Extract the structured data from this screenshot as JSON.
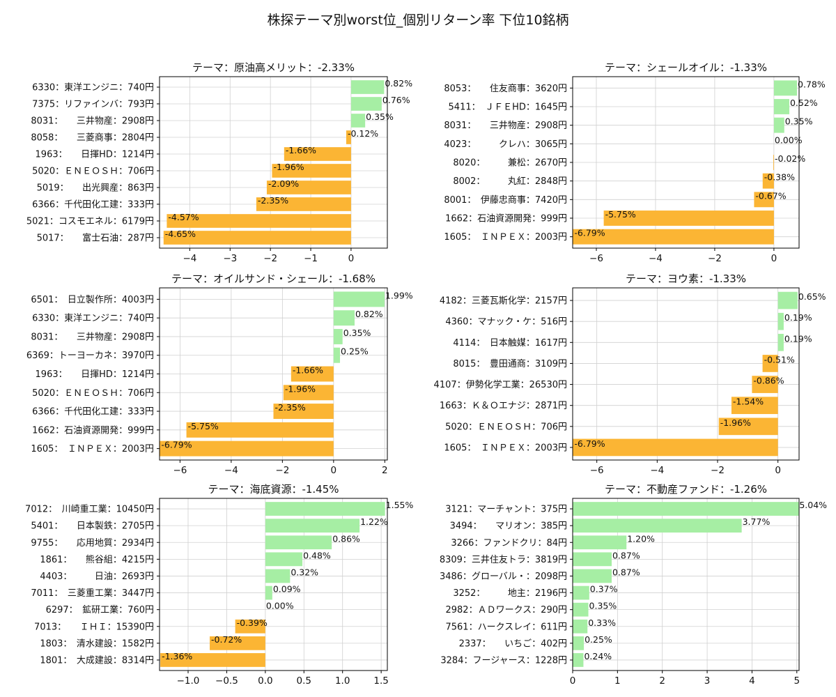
{
  "title": "株探テーマ別worst位_個別リターン率 下位10銘柄",
  "colors": {
    "positive": "#a6eea4",
    "negative": "#fbb534",
    "grid": "#d0d0d0",
    "axis": "#000000"
  },
  "chart_data": [
    {
      "type": "bar",
      "orientation": "horizontal",
      "title": "テーマ：原油高メリット：-2.33%",
      "categories": [
        "6330：東洋エンジニ：740円",
        "7375：リファインバ：793円",
        "8031：　　三井物産：2908円",
        "8058：　　三菱商事：2804円",
        "1963：　　日揮HD：1214円",
        "5020：ＥＮＥＯＳＨ：706円",
        "5019：　　出光興産：863円",
        "6366：千代田化工建：333円",
        "5021：コスモエネル：6179円",
        "5017：　　富士石油：287円"
      ],
      "values": [
        0.82,
        0.76,
        0.35,
        -0.12,
        -1.66,
        -1.96,
        -2.09,
        -2.35,
        -4.57,
        -4.65
      ],
      "value_labels": [
        "0.82%",
        "0.76%",
        "0.35%",
        "-0.12%",
        "-1.66%",
        "-1.96%",
        "-2.09%",
        "-2.35%",
        "-4.57%",
        "-4.65%"
      ],
      "xlim": [
        -4.75,
        0.9
      ],
      "xticks": [
        -4,
        -3,
        -2,
        -1,
        0
      ],
      "xtick_labels": [
        "−4",
        "−3",
        "−2",
        "−1",
        "0"
      ],
      "grid": true
    },
    {
      "type": "bar",
      "orientation": "horizontal",
      "title": "テーマ：シェールオイル：-1.33%",
      "categories": [
        "8053：　　住友商事：3620円",
        "5411：　ＪＦＥHD：1645円",
        "8031：　　三井物産：2908円",
        "4023：　　　クレハ：3065円",
        "8020：　　　兼松：2670円",
        "8002：　　　丸紅：2848円",
        "8001：　伊藤忠商事：7420円",
        "1662：石油資源開発：999円",
        "1605：　ＩＮＰＥＸ：2003円"
      ],
      "values": [
        0.78,
        0.52,
        0.35,
        0.0,
        -0.02,
        -0.38,
        -0.67,
        -5.75,
        -6.79
      ],
      "value_labels": [
        "0.78%",
        "0.52%",
        "0.35%",
        "0.00%",
        "-0.02%",
        "-0.38%",
        "-0.67%",
        "-5.75%",
        "-6.79%"
      ],
      "xlim": [
        -6.8,
        0.85
      ],
      "xticks": [
        -6,
        -4,
        -2,
        0
      ],
      "xtick_labels": [
        "−6",
        "−4",
        "−2",
        "0"
      ],
      "grid": true
    },
    {
      "type": "bar",
      "orientation": "horizontal",
      "title": "テーマ：オイルサンド・シェール：-1.68%",
      "categories": [
        "6501：　日立製作所：4003円",
        "6330：東洋エンジニ：740円",
        "8031：　　三井物産：2908円",
        "6369：トーヨーカネ：3970円",
        "1963：　　日揮HD：1214円",
        "5020：ＥＮＥＯＳＨ：706円",
        "6366：千代田化工建：333円",
        "1662：石油資源開発：999円",
        "1605：　ＩＮＰＥＸ：2003円"
      ],
      "values": [
        1.99,
        0.82,
        0.35,
        0.25,
        -1.66,
        -1.96,
        -2.35,
        -5.75,
        -6.79
      ],
      "value_labels": [
        "1.99%",
        "0.82%",
        "0.35%",
        "0.25%",
        "-1.66%",
        "-1.96%",
        "-2.35%",
        "-5.75%",
        "-6.79%"
      ],
      "xlim": [
        -6.8,
        2.1
      ],
      "xticks": [
        -6,
        -4,
        -2,
        0,
        2
      ],
      "xtick_labels": [
        "−6",
        "−4",
        "−2",
        "0",
        "2"
      ],
      "grid": true
    },
    {
      "type": "bar",
      "orientation": "horizontal",
      "title": "テーマ：ヨウ素：-1.33%",
      "categories": [
        "4182：三菱瓦斯化学：2157円",
        "4360：マナック・ケ：516円",
        "4114：　日本触媒：1617円",
        "8015：　豊田通商：3109円",
        "4107：伊勢化学工業：26530円",
        "1663：Ｋ＆Ｏエナジ：2871円",
        "5020：ＥＮＥＯＳＨ：706円",
        "1605：　ＩＮＰＥＸ：2003円"
      ],
      "values": [
        0.65,
        0.19,
        0.19,
        -0.51,
        -0.86,
        -1.54,
        -1.96,
        -6.79
      ],
      "value_labels": [
        "0.65%",
        "0.19%",
        "0.19%",
        "-0.51%",
        "-0.86%",
        "-1.54%",
        "-1.96%",
        "-6.79%"
      ],
      "xlim": [
        -6.8,
        0.7
      ],
      "xticks": [
        -6,
        -4,
        -2,
        0
      ],
      "xtick_labels": [
        "−6",
        "−4",
        "−2",
        "0"
      ],
      "grid": true
    },
    {
      "type": "bar",
      "orientation": "horizontal",
      "title": "テーマ：海底資源：-1.45%",
      "categories": [
        "7012：　川崎重工業：10450円",
        "5401：　　日本製鉄：2705円",
        "9755：　　応用地質：2934円",
        "1861：　　熊谷組：4215円",
        "4403：　　　日油：2693円",
        "7011：　三菱重工業：3447円",
        "6297：　鉱研工業：760円",
        "7013：　　ＩＨＩ：15390円",
        "1803：　清水建設：1582円",
        "1801：　大成建設：8314円"
      ],
      "values": [
        1.55,
        1.22,
        0.86,
        0.48,
        0.32,
        0.09,
        0.0,
        -0.39,
        -0.72,
        -1.36
      ],
      "value_labels": [
        "1.55%",
        "1.22%",
        "0.86%",
        "0.48%",
        "0.32%",
        "0.09%",
        "0.00%",
        "-0.39%",
        "-0.72%",
        "-1.36%"
      ],
      "xlim": [
        -1.37,
        1.58
      ],
      "xticks": [
        -1.0,
        -0.5,
        0.0,
        0.5,
        1.0,
        1.5
      ],
      "xtick_labels": [
        "−1.0",
        "−0.5",
        "0.0",
        "0.5",
        "1.0",
        "1.5"
      ],
      "grid": true
    },
    {
      "type": "bar",
      "orientation": "horizontal",
      "title": "テーマ：不動産ファンド：-1.26%",
      "categories": [
        "3121：マーチャント：375円",
        "3494：　　マリオン：385円",
        "3266：ファンドクリ：84円",
        "8309：三井住友トラ：3819円",
        "3486：グローバル・：2098円",
        "3252：　　　地主：2196円",
        "2982：ＡＤワークス：290円",
        "7561：ハークスレイ：611円",
        "2337：　　いちご：402円",
        "3284：フージャース：1228円"
      ],
      "values": [
        5.04,
        3.77,
        1.2,
        0.87,
        0.87,
        0.37,
        0.35,
        0.33,
        0.25,
        0.24
      ],
      "value_labels": [
        "5.04%",
        "3.77%",
        "1.20%",
        "0.87%",
        "0.87%",
        "0.37%",
        "0.35%",
        "0.33%",
        "0.25%",
        "0.24%"
      ],
      "xlim": [
        0,
        5.05
      ],
      "xticks": [
        0,
        1,
        2,
        3,
        4,
        5
      ],
      "xtick_labels": [
        "0",
        "1",
        "2",
        "3",
        "4",
        "5"
      ],
      "grid": true
    }
  ]
}
